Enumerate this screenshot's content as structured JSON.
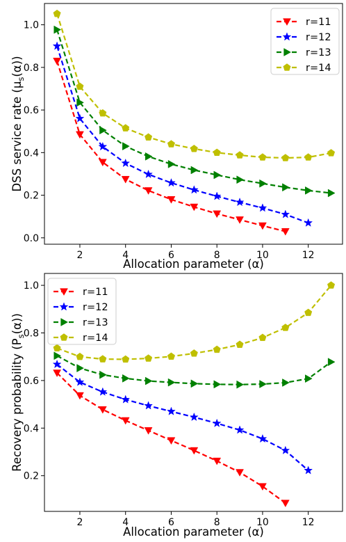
{
  "chart_data": [
    {
      "type": "line",
      "xlabel": "Allocation parameter (α)",
      "ylabel": "DSS service rate (μ_s(α))",
      "ylabel_parts": {
        "pre": "DSS service rate (μ",
        "sub": "s",
        "post": "(α))"
      },
      "xlim": [
        0.45,
        13.5
      ],
      "ylim": [
        -0.03,
        1.1
      ],
      "xticks": [
        2,
        4,
        6,
        8,
        10,
        12
      ],
      "yticks": [
        0.0,
        0.2,
        0.4,
        0.6,
        0.8,
        1.0
      ],
      "ytick_labels": [
        "0.0",
        "0.2",
        "0.4",
        "0.6",
        "0.8",
        "1.0"
      ],
      "grid": false,
      "legend_position": "top-right",
      "series": [
        {
          "name": "r=11",
          "color": "#ff0000",
          "marker": "triangle-down",
          "x": [
            1,
            2,
            3,
            4,
            5,
            6,
            7,
            8,
            9,
            10,
            11
          ],
          "y": [
            0.83,
            0.485,
            0.355,
            0.275,
            0.222,
            0.18,
            0.145,
            0.113,
            0.085,
            0.057,
            0.03
          ]
        },
        {
          "name": "r=12",
          "color": "#0000ff",
          "marker": "star",
          "x": [
            1,
            2,
            3,
            4,
            5,
            6,
            7,
            8,
            9,
            10,
            11,
            12
          ],
          "y": [
            0.9,
            0.56,
            0.428,
            0.35,
            0.298,
            0.258,
            0.225,
            0.195,
            0.167,
            0.14,
            0.11,
            0.07
          ]
        },
        {
          "name": "r=13",
          "color": "#008000",
          "marker": "triangle-right",
          "x": [
            1,
            2,
            3,
            4,
            5,
            6,
            7,
            8,
            9,
            10,
            11,
            12,
            13
          ],
          "y": [
            0.977,
            0.635,
            0.505,
            0.43,
            0.382,
            0.346,
            0.318,
            0.295,
            0.273,
            0.255,
            0.237,
            0.222,
            0.21
          ]
        },
        {
          "name": "r=14",
          "color": "#bfbf00",
          "marker": "pentagon",
          "x": [
            1,
            2,
            3,
            4,
            5,
            6,
            7,
            8,
            9,
            10,
            11,
            12,
            13
          ],
          "y": [
            1.052,
            0.71,
            0.585,
            0.515,
            0.472,
            0.44,
            0.418,
            0.4,
            0.388,
            0.378,
            0.375,
            0.378,
            0.398
          ]
        }
      ]
    },
    {
      "type": "line",
      "xlabel": "Allocation parameter (α)",
      "ylabel": "Recovery probability (P_s(α))",
      "ylabel_parts": {
        "pre": "Recovery probability (P",
        "sub": "s",
        "post": "(α))"
      },
      "xlim": [
        0.45,
        13.5
      ],
      "ylim": [
        0.05,
        1.05
      ],
      "xticks": [
        2,
        4,
        6,
        8,
        10,
        12
      ],
      "yticks": [
        0.2,
        0.4,
        0.6,
        0.8,
        1.0
      ],
      "ytick_labels": [
        "0.2",
        "0.4",
        "0.6",
        "0.8",
        "1.0"
      ],
      "grid": false,
      "legend_position": "top-left",
      "series": [
        {
          "name": "r=11",
          "color": "#ff0000",
          "marker": "triangle-down",
          "x": [
            1,
            2,
            3,
            4,
            5,
            6,
            7,
            8,
            9,
            10,
            11
          ],
          "y": [
            0.632,
            0.537,
            0.478,
            0.432,
            0.39,
            0.348,
            0.306,
            0.262,
            0.214,
            0.155,
            0.085
          ]
        },
        {
          "name": "r=12",
          "color": "#0000ff",
          "marker": "star",
          "x": [
            1,
            2,
            3,
            4,
            5,
            6,
            7,
            8,
            9,
            10,
            11,
            12
          ],
          "y": [
            0.668,
            0.593,
            0.552,
            0.52,
            0.494,
            0.47,
            0.446,
            0.42,
            0.392,
            0.355,
            0.306,
            0.222
          ]
        },
        {
          "name": "r=13",
          "color": "#008000",
          "marker": "triangle-right",
          "x": [
            1,
            2,
            3,
            4,
            5,
            6,
            7,
            8,
            9,
            10,
            11,
            12,
            13
          ],
          "y": [
            0.704,
            0.652,
            0.624,
            0.609,
            0.598,
            0.592,
            0.587,
            0.584,
            0.583,
            0.585,
            0.591,
            0.608,
            0.678
          ]
        },
        {
          "name": "r=14",
          "color": "#bfbf00",
          "marker": "pentagon",
          "x": [
            1,
            2,
            3,
            4,
            5,
            6,
            7,
            8,
            9,
            10,
            11,
            12,
            13
          ],
          "y": [
            0.736,
            0.7,
            0.69,
            0.689,
            0.693,
            0.701,
            0.714,
            0.73,
            0.751,
            0.78,
            0.822,
            0.885,
            1.0
          ]
        }
      ]
    }
  ]
}
